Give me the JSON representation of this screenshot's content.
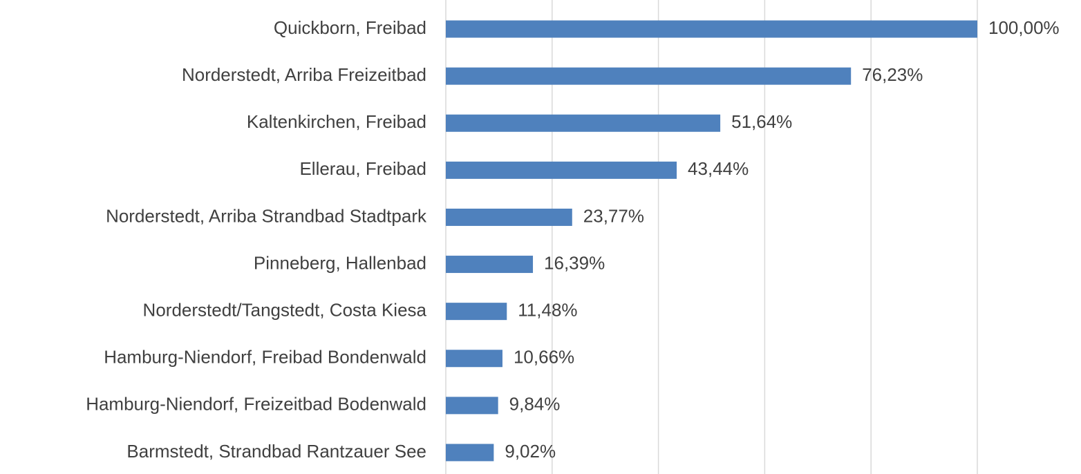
{
  "chart_data": {
    "type": "barh",
    "categories": [
      "Quickborn, Freibad",
      "Norderstedt, Arriba Freizeitbad",
      "Kaltenkirchen, Freibad",
      "Ellerau, Freibad",
      "Norderstedt, Arriba Strandbad Stadtpark",
      "Pinneberg, Hallenbad",
      "Norderstedt/Tangstedt, Costa Kiesa",
      "Hamburg-Niendorf, Freibad Bondenwald",
      "Hamburg-Niendorf, Freizeitbad Bodenwald",
      "Barmstedt, Strandbad Rantzauer See"
    ],
    "values": [
      100.0,
      76.23,
      51.64,
      43.44,
      23.77,
      16.39,
      11.48,
      10.66,
      9.84,
      9.02
    ],
    "value_labels": [
      "100,00%",
      "76,23%",
      "51,64%",
      "43,44%",
      "23,77%",
      "16,39%",
      "11,48%",
      "10,66%",
      "9,84%",
      "9,02%"
    ],
    "color": "#4f81bd",
    "xlim": [
      0,
      100
    ],
    "xticks": [
      0,
      20,
      40,
      60,
      80,
      100
    ],
    "grid": true
  }
}
